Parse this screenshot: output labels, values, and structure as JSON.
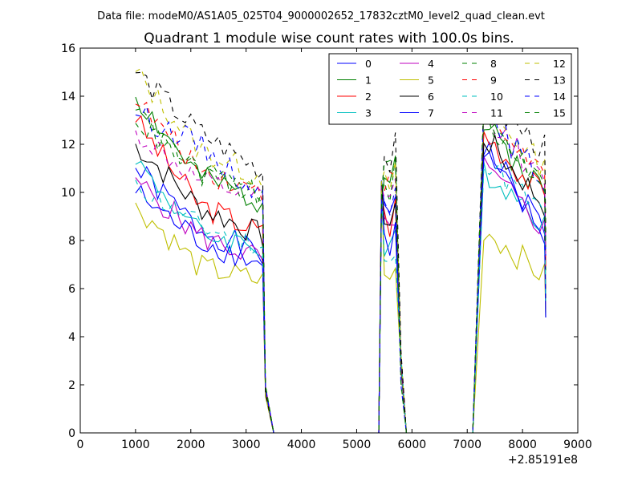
{
  "chart_data": {
    "type": "line",
    "suptitle": "Data file: modeM0/AS1A05_025T04_9000002652_17832cztM0_level2_quad_clean.evt",
    "title": "Quadrant 1 module wise count rates with 100.0s bins.",
    "xlabel": "",
    "ylabel": "",
    "x_offset_label": "+2.85191e8",
    "xlim": [
      0,
      9000
    ],
    "ylim": [
      0,
      16
    ],
    "xticks": [
      0,
      1000,
      2000,
      3000,
      4000,
      5000,
      6000,
      7000,
      8000,
      9000
    ],
    "yticks": [
      0,
      2,
      4,
      6,
      8,
      10,
      12,
      14,
      16
    ],
    "legend_position": "top-right",
    "legend_columns": 4,
    "segments": [
      {
        "x_start": 1000,
        "x_end": 3300,
        "step": 100
      },
      {
        "x_start": 5500,
        "x_end": 5700,
        "step": 100
      },
      {
        "x_start": 7300,
        "x_end": 8400,
        "step": 100
      }
    ],
    "zero_x": [
      3500,
      3600,
      3700,
      3800,
      3900,
      4000,
      4100,
      4200,
      4300,
      4400,
      4500,
      4600,
      4700,
      4800,
      4900,
      5000,
      5100,
      5200,
      5300,
      5400,
      5900,
      6000,
      6100,
      6200,
      6300,
      6400,
      6500,
      6600,
      6700,
      6800,
      6900,
      7000,
      7100
    ],
    "series": [
      {
        "name": "0",
        "color": "#0000ff",
        "dash": "solid",
        "seg1_start": 11.0,
        "seg1_mid": 8.5,
        "seg1_end": 7.4,
        "peak": 10.0,
        "seg3_start": 12.0,
        "seg3_end": 8.5,
        "noise_seed": 1
      },
      {
        "name": "1",
        "color": "#008000",
        "dash": "solid",
        "seg1_start": 14.0,
        "seg1_mid": 10.6,
        "seg1_end": 9.6,
        "peak": 11.5,
        "seg3_start": 12.8,
        "seg3_end": 10.0,
        "noise_seed": 2
      },
      {
        "name": "2",
        "color": "#ff0000",
        "dash": "solid",
        "seg1_start": 13.0,
        "seg1_mid": 9.5,
        "seg1_end": 8.3,
        "peak": 9.5,
        "seg3_start": 12.5,
        "seg3_end": 9.8,
        "noise_seed": 3
      },
      {
        "name": "3",
        "color": "#00bfbf",
        "dash": "solid",
        "seg1_start": 11.3,
        "seg1_mid": 8.3,
        "seg1_end": 7.7,
        "peak": 8.0,
        "seg3_start": 11.0,
        "seg3_end": 8.8,
        "noise_seed": 4
      },
      {
        "name": "4",
        "color": "#bf00bf",
        "dash": "solid",
        "seg1_start": 10.5,
        "seg1_mid": 8.2,
        "seg1_end": 7.2,
        "peak": 9.0,
        "seg3_start": 11.0,
        "seg3_end": 8.5,
        "noise_seed": 5
      },
      {
        "name": "5",
        "color": "#bfbf00",
        "dash": "solid",
        "seg1_start": 9.5,
        "seg1_mid": 6.9,
        "seg1_end": 6.3,
        "peak": 7.0,
        "seg3_start": 8.5,
        "seg3_end": 6.5,
        "noise_seed": 6
      },
      {
        "name": "6",
        "color": "#000000",
        "dash": "solid",
        "seg1_start": 12.0,
        "seg1_mid": 9.4,
        "seg1_end": 8.2,
        "peak": 9.5,
        "seg3_start": 12.3,
        "seg3_end": 9.5,
        "noise_seed": 7
      },
      {
        "name": "7",
        "color": "#0000ff",
        "dash": "solid",
        "seg1_start": 10.0,
        "seg1_mid": 8.0,
        "seg1_end": 7.0,
        "peak": 8.5,
        "seg3_start": 11.5,
        "seg3_end": 8.2,
        "noise_seed": 8
      },
      {
        "name": "8",
        "color": "#008000",
        "dash": "dashed",
        "seg1_start": 13.5,
        "seg1_mid": 10.7,
        "seg1_end": 9.8,
        "peak": 11.0,
        "seg3_start": 13.0,
        "seg3_end": 10.5,
        "noise_seed": 9
      },
      {
        "name": "9",
        "color": "#ff0000",
        "dash": "dashed",
        "seg1_start": 13.8,
        "seg1_mid": 11.0,
        "seg1_end": 10.0,
        "peak": 11.0,
        "seg3_start": 13.2,
        "seg3_end": 10.8,
        "noise_seed": 10
      },
      {
        "name": "10",
        "color": "#00bfbf",
        "dash": "dashed",
        "seg1_start": 10.4,
        "seg1_mid": 8.6,
        "seg1_end": 7.8,
        "peak": 7.5,
        "seg3_start": 11.5,
        "seg3_end": 9.0,
        "noise_seed": 11
      },
      {
        "name": "11",
        "color": "#bf00bf",
        "dash": "dashed",
        "seg1_start": 12.5,
        "seg1_mid": 10.4,
        "seg1_end": 9.7,
        "peak": 10.5,
        "seg3_start": 13.5,
        "seg3_end": 10.2,
        "noise_seed": 12
      },
      {
        "name": "12",
        "color": "#bfbf00",
        "dash": "dashed",
        "seg1_start": 15.0,
        "seg1_mid": 11.8,
        "seg1_end": 10.6,
        "peak": 11.0,
        "seg3_start": 13.5,
        "seg3_end": 11.0,
        "noise_seed": 13
      },
      {
        "name": "13",
        "color": "#000000",
        "dash": "dashed",
        "seg1_start": 15.0,
        "seg1_mid": 12.5,
        "seg1_end": 10.9,
        "peak": 12.0,
        "seg3_start": 13.8,
        "seg3_end": 11.8,
        "noise_seed": 14
      },
      {
        "name": "14",
        "color": "#0000ff",
        "dash": "dashed",
        "seg1_start": 13.3,
        "seg1_mid": 12.0,
        "seg1_end": 9.8,
        "peak": 10.5,
        "seg3_start": 13.2,
        "seg3_end": 10.5,
        "noise_seed": 15
      },
      {
        "name": "15",
        "color": "#008000",
        "dash": "dashed",
        "seg1_start": 13.0,
        "seg1_mid": 10.8,
        "seg1_end": 10.0,
        "peak": 11.5,
        "seg3_start": 13.0,
        "seg3_end": 10.4,
        "noise_seed": 16
      }
    ]
  }
}
